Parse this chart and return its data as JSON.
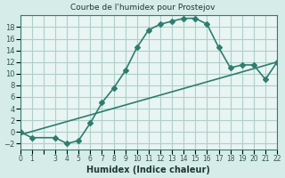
{
  "title": "Courbe de l'humidex pour Prostejov",
  "xlabel": "Humidex (Indice chaleur)",
  "line1_x": [
    0,
    1,
    3,
    4,
    5,
    6,
    7,
    8,
    9,
    10,
    11,
    12,
    13,
    14,
    15,
    16,
    17,
    18,
    19,
    20,
    21,
    22
  ],
  "line1_y": [
    0,
    -1,
    -1,
    -2,
    -1.5,
    1.5,
    5,
    7.5,
    10.5,
    14.5,
    17.5,
    18.5,
    19,
    19.5,
    19.5,
    18.5,
    14.5,
    11,
    11.5,
    11.5,
    9,
    12
  ],
  "line2_x": [
    0,
    22
  ],
  "line2_y": [
    -0.5,
    12
  ],
  "line_color": "#2e7d6e",
  "bg_color": "#d6ece8",
  "grid_color": "#b0cfc9",
  "plot_bg": "#e8f5f3",
  "xlim": [
    0,
    22
  ],
  "ylim": [
    -3,
    20
  ],
  "yticks": [
    -2,
    0,
    2,
    4,
    6,
    8,
    10,
    12,
    14,
    16,
    18
  ],
  "xtick_labels": [
    "0",
    "1",
    "",
    "3",
    "4",
    "5",
    "6",
    "7",
    "8",
    "9",
    "10",
    "11",
    "12",
    "13",
    "14",
    "15",
    "16",
    "17",
    "18",
    "19",
    "20",
    "21",
    "22"
  ],
  "marker": "D",
  "marker_size": 3,
  "line_width": 1.2,
  "tick_color": "#2e5a50",
  "label_color": "#1a3a30"
}
